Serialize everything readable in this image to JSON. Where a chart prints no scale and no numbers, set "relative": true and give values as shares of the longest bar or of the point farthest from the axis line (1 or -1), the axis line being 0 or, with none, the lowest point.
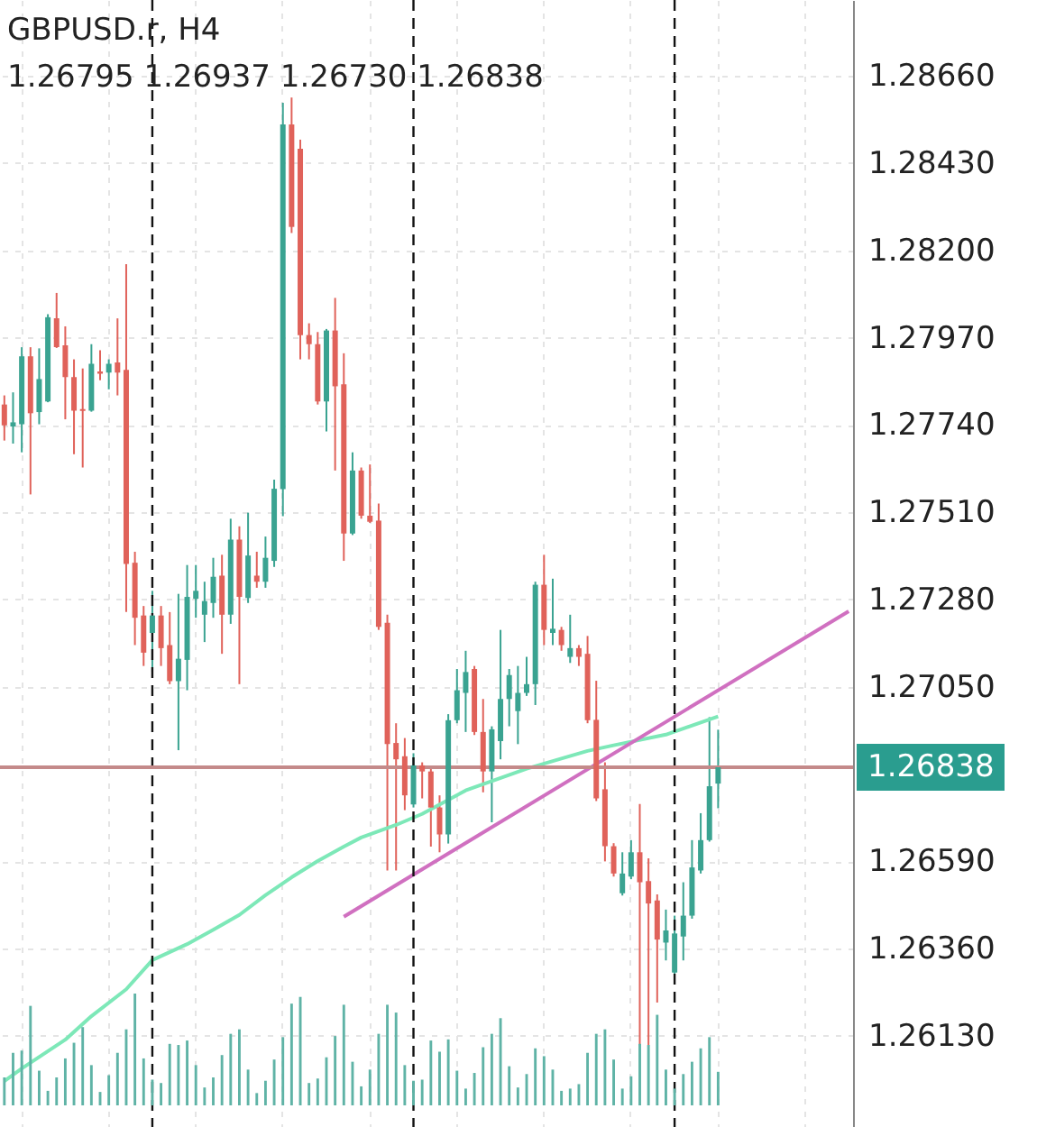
{
  "chart_data": [
    {
      "type": "candlestick",
      "title": "GBPUSD.r, H4",
      "subtitle": "1.26795 1.26937 1.26730 1.26838",
      "categories": [
        null,
        null,
        null,
        null,
        null,
        null,
        null,
        null,
        null,
        null,
        null,
        null,
        null,
        null,
        null,
        null,
        null,
        null,
        null,
        null,
        null,
        null,
        null,
        null,
        null,
        null,
        null,
        null,
        null,
        null,
        null,
        null,
        null,
        null,
        null,
        null,
        null,
        null,
        null,
        null,
        null,
        null,
        null,
        null,
        null,
        null,
        null,
        null,
        null,
        null,
        null,
        null,
        null,
        null,
        null,
        null,
        null,
        null,
        null,
        null,
        null,
        null,
        null,
        null,
        null,
        null,
        null,
        null,
        null,
        null,
        null,
        null,
        null,
        null,
        null,
        null,
        null,
        null,
        null,
        null,
        null,
        null,
        null,
        null,
        null,
        null,
        null,
        null,
        null,
        null,
        null,
        null,
        null,
        null,
        null,
        null,
        null,
        null
      ],
      "ohlc": [
        [
          1.27794,
          1.27818,
          1.27699,
          1.27739
        ],
        [
          1.27736,
          1.27826,
          1.27691,
          1.27747
        ],
        [
          1.27742,
          1.27945,
          1.27668,
          1.27921
        ],
        [
          1.27921,
          1.27945,
          1.27557,
          1.27771
        ],
        [
          1.27774,
          1.27942,
          1.27742,
          1.27861
        ],
        [
          1.27802,
          1.28032,
          1.278,
          1.28024
        ],
        [
          1.28021,
          1.28088,
          1.27943,
          1.27945
        ],
        [
          1.2795,
          1.28,
          1.27755,
          1.27866
        ],
        [
          1.27866,
          1.27913,
          1.27663,
          1.27778
        ],
        [
          1.27782,
          1.27889,
          1.27628,
          1.27777
        ],
        [
          1.27778,
          1.27953,
          1.27775,
          1.27901
        ],
        [
          1.27881,
          1.27937,
          1.27858,
          1.27875
        ],
        [
          1.27878,
          1.27913,
          1.27834,
          1.27901
        ],
        [
          1.27905,
          1.28021,
          1.27818,
          1.27878
        ],
        [
          1.27885,
          1.28164,
          1.27247,
          1.27374
        ],
        [
          1.27377,
          1.27406,
          1.2716,
          1.27232
        ],
        [
          1.27238,
          1.27263,
          1.27105,
          1.2714
        ],
        [
          1.27192,
          1.27303,
          1.27089,
          1.27238
        ],
        [
          1.27238,
          1.27263,
          1.27105,
          1.27152
        ],
        [
          1.2716,
          1.27247,
          1.27057,
          1.27065
        ],
        [
          1.27065,
          1.27295,
          1.26883,
          1.27124
        ],
        [
          1.27121,
          1.27371,
          1.27041,
          1.27287
        ],
        [
          1.27282,
          1.27371,
          1.27232,
          1.27303
        ],
        [
          1.2724,
          1.27327,
          1.27168,
          1.27276
        ],
        [
          1.27271,
          1.2739,
          1.27232,
          1.2734
        ],
        [
          1.27343,
          1.27398,
          1.27137,
          1.2724
        ],
        [
          1.2724,
          1.27493,
          1.27216,
          1.27438
        ],
        [
          1.27438,
          1.27473,
          1.27057,
          1.27287
        ],
        [
          1.27284,
          1.27509,
          1.27271,
          1.27396
        ],
        [
          1.27343,
          1.27406,
          1.27311,
          1.27327
        ],
        [
          1.27327,
          1.27446,
          1.27311,
          1.2739
        ],
        [
          1.27382,
          1.27596,
          1.27366,
          1.27572
        ],
        [
          1.27571,
          1.28589,
          1.275,
          1.28532
        ],
        [
          1.28532,
          1.28603,
          1.28246,
          1.28262
        ],
        [
          1.28468,
          1.28492,
          1.27913,
          1.27977
        ],
        [
          1.27977,
          1.28008,
          1.27913,
          1.27953
        ],
        [
          1.27953,
          1.27985,
          1.27794,
          1.27802
        ],
        [
          1.27802,
          1.27993,
          1.27723,
          1.27989
        ],
        [
          1.27989,
          1.28075,
          1.2762,
          1.27842
        ],
        [
          1.27847,
          1.27929,
          1.27382,
          1.27454
        ],
        [
          1.27454,
          1.27668,
          1.2745,
          1.2762
        ],
        [
          1.2762,
          1.27628,
          1.27493,
          1.27501
        ],
        [
          1.27501,
          1.27636,
          1.27482,
          1.27485
        ],
        [
          1.27488,
          1.27533,
          1.272,
          1.27208
        ],
        [
          1.27219,
          1.2724,
          1.26566,
          1.26899
        ],
        [
          1.26902,
          1.26954,
          1.26566,
          1.26859
        ],
        [
          1.26867,
          1.26915,
          1.26725,
          1.26764
        ],
        [
          1.2674,
          1.26875,
          1.26732,
          1.26843
        ],
        [
          1.26843,
          1.26851,
          1.26756,
          1.26827
        ],
        [
          1.26827,
          1.26835,
          1.26629,
          1.26732
        ],
        [
          1.26732,
          1.26764,
          1.26614,
          1.26661
        ],
        [
          1.26661,
          1.26978,
          1.26637,
          1.26962
        ],
        [
          1.26962,
          1.27097,
          1.26954,
          1.27041
        ],
        [
          1.27034,
          1.27145,
          1.26931,
          1.27089
        ],
        [
          1.27097,
          1.27105,
          1.26923,
          1.26931
        ],
        [
          1.26931,
          1.27018,
          1.26772,
          1.26827
        ],
        [
          1.26827,
          1.26946,
          1.26693,
          1.26938
        ],
        [
          1.26907,
          1.272,
          1.26859,
          1.27018
        ],
        [
          1.27018,
          1.27097,
          1.26946,
          1.27081
        ],
        [
          1.26986,
          1.27105,
          1.26899,
          1.27034
        ],
        [
          1.27034,
          1.27129,
          1.27026,
          1.27057
        ],
        [
          1.27057,
          1.27327,
          1.27002,
          1.27319
        ],
        [
          1.27319,
          1.27398,
          1.2716,
          1.272
        ],
        [
          1.27192,
          1.27335,
          1.2716,
          1.27203
        ],
        [
          1.272,
          1.27208,
          1.27145,
          1.2716
        ],
        [
          1.27129,
          1.2724,
          1.27113,
          1.27152
        ],
        [
          1.27152,
          1.2716,
          1.27105,
          1.27129
        ],
        [
          1.27137,
          1.27184,
          1.26954,
          1.26962
        ],
        [
          1.26963,
          1.27066,
          1.26749,
          1.26756
        ],
        [
          1.2678,
          1.26851,
          1.2659,
          1.2663
        ],
        [
          1.2663,
          1.26638,
          1.2655,
          1.26558
        ],
        [
          1.26506,
          1.26614,
          1.265,
          1.26558
        ],
        [
          1.2655,
          1.26646,
          1.26543,
          1.26614
        ],
        [
          1.26614,
          1.26741,
          1.26105,
          1.26535
        ],
        [
          1.26538,
          1.26598,
          1.26105,
          1.26479
        ],
        [
          1.26487,
          1.26503,
          1.26218,
          1.26384
        ],
        [
          1.26376,
          1.26463,
          1.26329,
          1.26408
        ],
        [
          1.26297,
          1.26447,
          1.26294,
          1.264
        ],
        [
          1.26392,
          1.26535,
          1.26329,
          1.26447
        ],
        [
          1.26447,
          1.26646,
          1.26439,
          1.26574
        ],
        [
          1.26566,
          1.26717,
          1.26558,
          1.26646
        ],
        [
          1.26646,
          1.2697,
          1.26642,
          1.26788
        ],
        [
          1.26795,
          1.26937,
          1.2673,
          1.26838
        ],
        null,
        null,
        null,
        null,
        null,
        null,
        null,
        null,
        null,
        null,
        null,
        null,
        null,
        null,
        null
      ],
      "colors": [
        "#e0625a",
        "#3aa391",
        "#3aa391",
        "#e0625a",
        "#3aa391",
        "#3aa391",
        "#e0625a",
        "#e0625a",
        "#e0625a",
        "#e0625a",
        "#3aa391",
        "#e0625a",
        "#3aa391",
        "#e0625a",
        "#e0625a",
        "#e0625a",
        "#e0625a",
        "#3aa391",
        "#e0625a",
        "#e0625a",
        "#3aa391",
        "#3aa391",
        "#3aa391",
        "#3aa391",
        "#3aa391",
        "#e0625a",
        "#3aa391",
        "#e0625a",
        "#3aa391",
        "#e0625a",
        "#3aa391",
        "#3aa391",
        "#3aa391",
        "#e0625a",
        "#e0625a",
        "#e0625a",
        "#e0625a",
        "#3aa391",
        "#e0625a",
        "#e0625a",
        "#3aa391",
        "#e0625a",
        "#e0625a",
        "#e0625a",
        "#e0625a",
        "#e0625a",
        "#e0625a",
        "#3aa391",
        "#e0625a",
        "#e0625a",
        "#e0625a",
        "#3aa391",
        "#3aa391",
        "#3aa391",
        "#e0625a",
        "#e0625a",
        "#3aa391",
        "#3aa391",
        "#3aa391",
        "#3aa391",
        "#3aa391",
        "#3aa391",
        "#e0625a",
        "#3aa391",
        "#e0625a",
        "#3aa391",
        "#e0625a",
        "#e0625a",
        "#e0625a",
        "#e0625a",
        "#e0625a",
        "#3aa391",
        "#3aa391",
        "#e0625a",
        "#e0625a",
        "#e0625a",
        "#3aa391",
        "#3aa391",
        "#3aa391",
        "#3aa391",
        "#3aa391",
        "#3aa391",
        "#3aa391",
        null,
        null,
        null,
        null,
        null,
        null,
        null,
        null,
        null,
        null,
        null,
        null,
        null,
        null,
        null
      ],
      "series": [
        {
          "type": "line",
          "color": "#7de8b8",
          "values": [
            1.26011,
            null,
            1.26044,
            null,
            null,
            null,
            null,
            1.2612,
            null,
            null,
            1.26182,
            null,
            null,
            null,
            1.26253,
            null,
            null,
            1.2633,
            null,
            null,
            null,
            1.26372,
            null,
            null,
            1.2641,
            null,
            null,
            1.26449,
            null,
            null,
            1.26501,
            null,
            null,
            1.26548,
            null,
            null,
            1.26591,
            null,
            null,
            1.26629,
            null,
            1.26653,
            null,
            null,
            null,
            1.26686,
            null,
            null,
            1.26715,
            null,
            null,
            null,
            null,
            1.26777,
            null,
            null,
            null,
            null,
            null,
            null,
            1.26834,
            null,
            null,
            null,
            null,
            null,
            null,
            1.26881,
            null,
            null,
            1.26896,
            null,
            null,
            null,
            null,
            null,
            1.26924,
            null,
            null,
            null,
            null,
            null,
            1.26972,
            null,
            null,
            null,
            null,
            null,
            null,
            null,
            null,
            null,
            null,
            null,
            null,
            null,
            null,
            null
          ]
        },
        {
          "type": "line",
          "color": "#d070c0",
          "values": [
            null,
            null,
            null,
            null,
            null,
            null,
            null,
            null,
            null,
            null,
            null,
            null,
            null,
            null,
            null,
            null,
            null,
            null,
            null,
            null,
            null,
            null,
            null,
            null,
            null,
            null,
            null,
            null,
            null,
            null,
            null,
            null,
            null,
            null,
            null,
            null,
            null,
            null,
            null,
            1.26444,
            null,
            null,
            null,
            null,
            null,
            null,
            null,
            null,
            null,
            null,
            null,
            null,
            null,
            null,
            null,
            null,
            null,
            null,
            null,
            null,
            null,
            null,
            null,
            null,
            null,
            null,
            null,
            null,
            null,
            null,
            null,
            null,
            null,
            null,
            null,
            null,
            null,
            null,
            null,
            null,
            null,
            null,
            null,
            null,
            null,
            null,
            null,
            null,
            null,
            null,
            null,
            null,
            null,
            null,
            null,
            null,
            null,
            1.27249
          ]
        }
      ],
      "ylim": [
        1.2589,
        1.2886
      ],
      "yticks": [
        {
          "value": 1.2613,
          "label": "1.26130"
        },
        {
          "value": 1.2636,
          "label": "1.26360"
        },
        {
          "value": 1.2659,
          "label": "1.26590"
        },
        {
          "value": 1.2705,
          "label": "1.27050"
        },
        {
          "value": 1.2728,
          "label": "1.27280"
        },
        {
          "value": 1.2751,
          "label": "1.27510"
        },
        {
          "value": 1.2774,
          "label": "1.27740"
        },
        {
          "value": 1.2797,
          "label": "1.27970"
        },
        {
          "value": 1.282,
          "label": "1.28200"
        },
        {
          "value": 1.2843,
          "label": "1.28430"
        },
        {
          "value": 1.2866,
          "label": "1.28660"
        }
      ],
      "grid": true,
      "tick_labels": "y",
      "ref_lines": [
        {
          "axis": "y",
          "value": 1.26838,
          "label": "1.26838",
          "color": "#c48a8a"
        }
      ]
    },
    {
      "type": "bar",
      "relative": true,
      "color": "#5fb3a6",
      "categories": [
        null,
        null,
        null,
        null,
        null,
        null,
        null,
        null,
        null,
        null,
        null,
        null,
        null,
        null,
        null,
        null,
        null,
        null,
        null,
        null,
        null,
        null,
        null,
        null,
        null,
        null,
        null,
        null,
        null,
        null,
        null,
        null,
        null,
        null,
        null,
        null,
        null,
        null,
        null,
        null,
        null,
        null,
        null,
        null,
        null,
        null,
        null,
        null,
        null,
        null,
        null,
        null,
        null,
        null,
        null,
        null,
        null,
        null,
        null,
        null,
        null,
        null,
        null,
        null,
        null,
        null,
        null,
        null,
        null,
        null,
        null,
        null,
        null,
        null,
        null,
        null,
        null,
        null,
        null,
        null,
        null,
        null,
        null,
        null,
        null,
        null,
        null,
        null,
        null,
        null,
        null,
        null,
        null,
        null,
        null,
        null,
        null,
        null
      ],
      "values": [
        0.25,
        0.47,
        0.49,
        0.89,
        0.31,
        0.13,
        0.25,
        0.42,
        0.56,
        0.7,
        0.36,
        0.12,
        0.27,
        0.47,
        0.68,
        1,
        0.42,
        0.23,
        0.2,
        0.55,
        0.54,
        0.58,
        0.36,
        0.16,
        0.25,
        0.45,
        0.64,
        0.68,
        0.32,
        0.11,
        0.22,
        0.41,
        0.61,
        0.91,
        0.97,
        0.2,
        0.24,
        0.43,
        0.62,
        0.9,
        0.39,
        0.17,
        0.32,
        0.64,
        0.9,
        0.83,
        0.36,
        0.22,
        0.23,
        0.58,
        0.48,
        0.59,
        0.31,
        0.15,
        0.29,
        0.52,
        0.64,
        0.78,
        0.35,
        0.16,
        0.28,
        0.51,
        0.44,
        0.32,
        0.13,
        0.15,
        0.19,
        0.47,
        0.64,
        0.68,
        0.41,
        0.15,
        0.26,
        0.55,
        0.54,
        0.81,
        0.32,
        0.15,
        0.28,
        0.39,
        0.51,
        0.61,
        0.3,
        null,
        null,
        null,
        null,
        null,
        null,
        null,
        null,
        null,
        null,
        null,
        null,
        null,
        null,
        null
      ]
    }
  ]
}
